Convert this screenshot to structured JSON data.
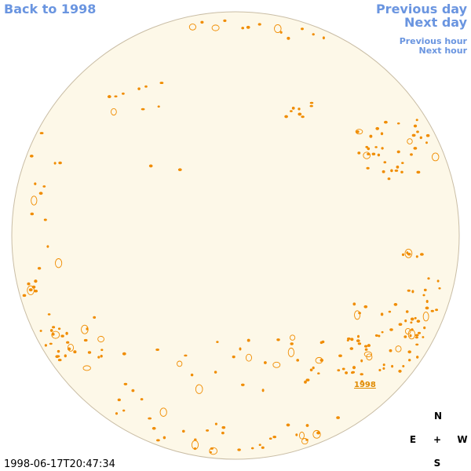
{
  "links": {
    "back": "Back to 1998",
    "previous_day": "Previous day",
    "next_day": "Next day",
    "previous_hour": "Previous hour",
    "next_hour": "Next hour"
  },
  "timestamp": "1998-06-17T20:47:34",
  "marker_label": "1998",
  "compass": {
    "north": "N",
    "east": "E",
    "center": "+",
    "west": "W",
    "south": "S"
  }
}
